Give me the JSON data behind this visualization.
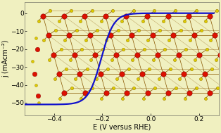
{
  "background_color": "#f0f0c0",
  "plot_bg_color": "#f0f0c0",
  "xlabel": "E (V versus RHE)",
  "ylabel": "j (mAcm⁻²)",
  "xlim": [
    -0.52,
    0.28
  ],
  "ylim": [
    -57,
    6
  ],
  "xticks": [
    -0.4,
    -0.2,
    0.0,
    0.2
  ],
  "yticks": [
    0,
    -10,
    -20,
    -30,
    -40,
    -50
  ],
  "curve_color": "#1111cc",
  "curve_lw": 1.6,
  "tick_fontsize": 6.5,
  "label_fontsize": 7.0,
  "figsize": [
    3.14,
    1.89
  ],
  "dpi": 100,
  "mo_color": "#dd1100",
  "s_color": "#ddcc00",
  "bond_color": "#885500",
  "slab_color": "#f0f0c0",
  "border_color": "#888877"
}
